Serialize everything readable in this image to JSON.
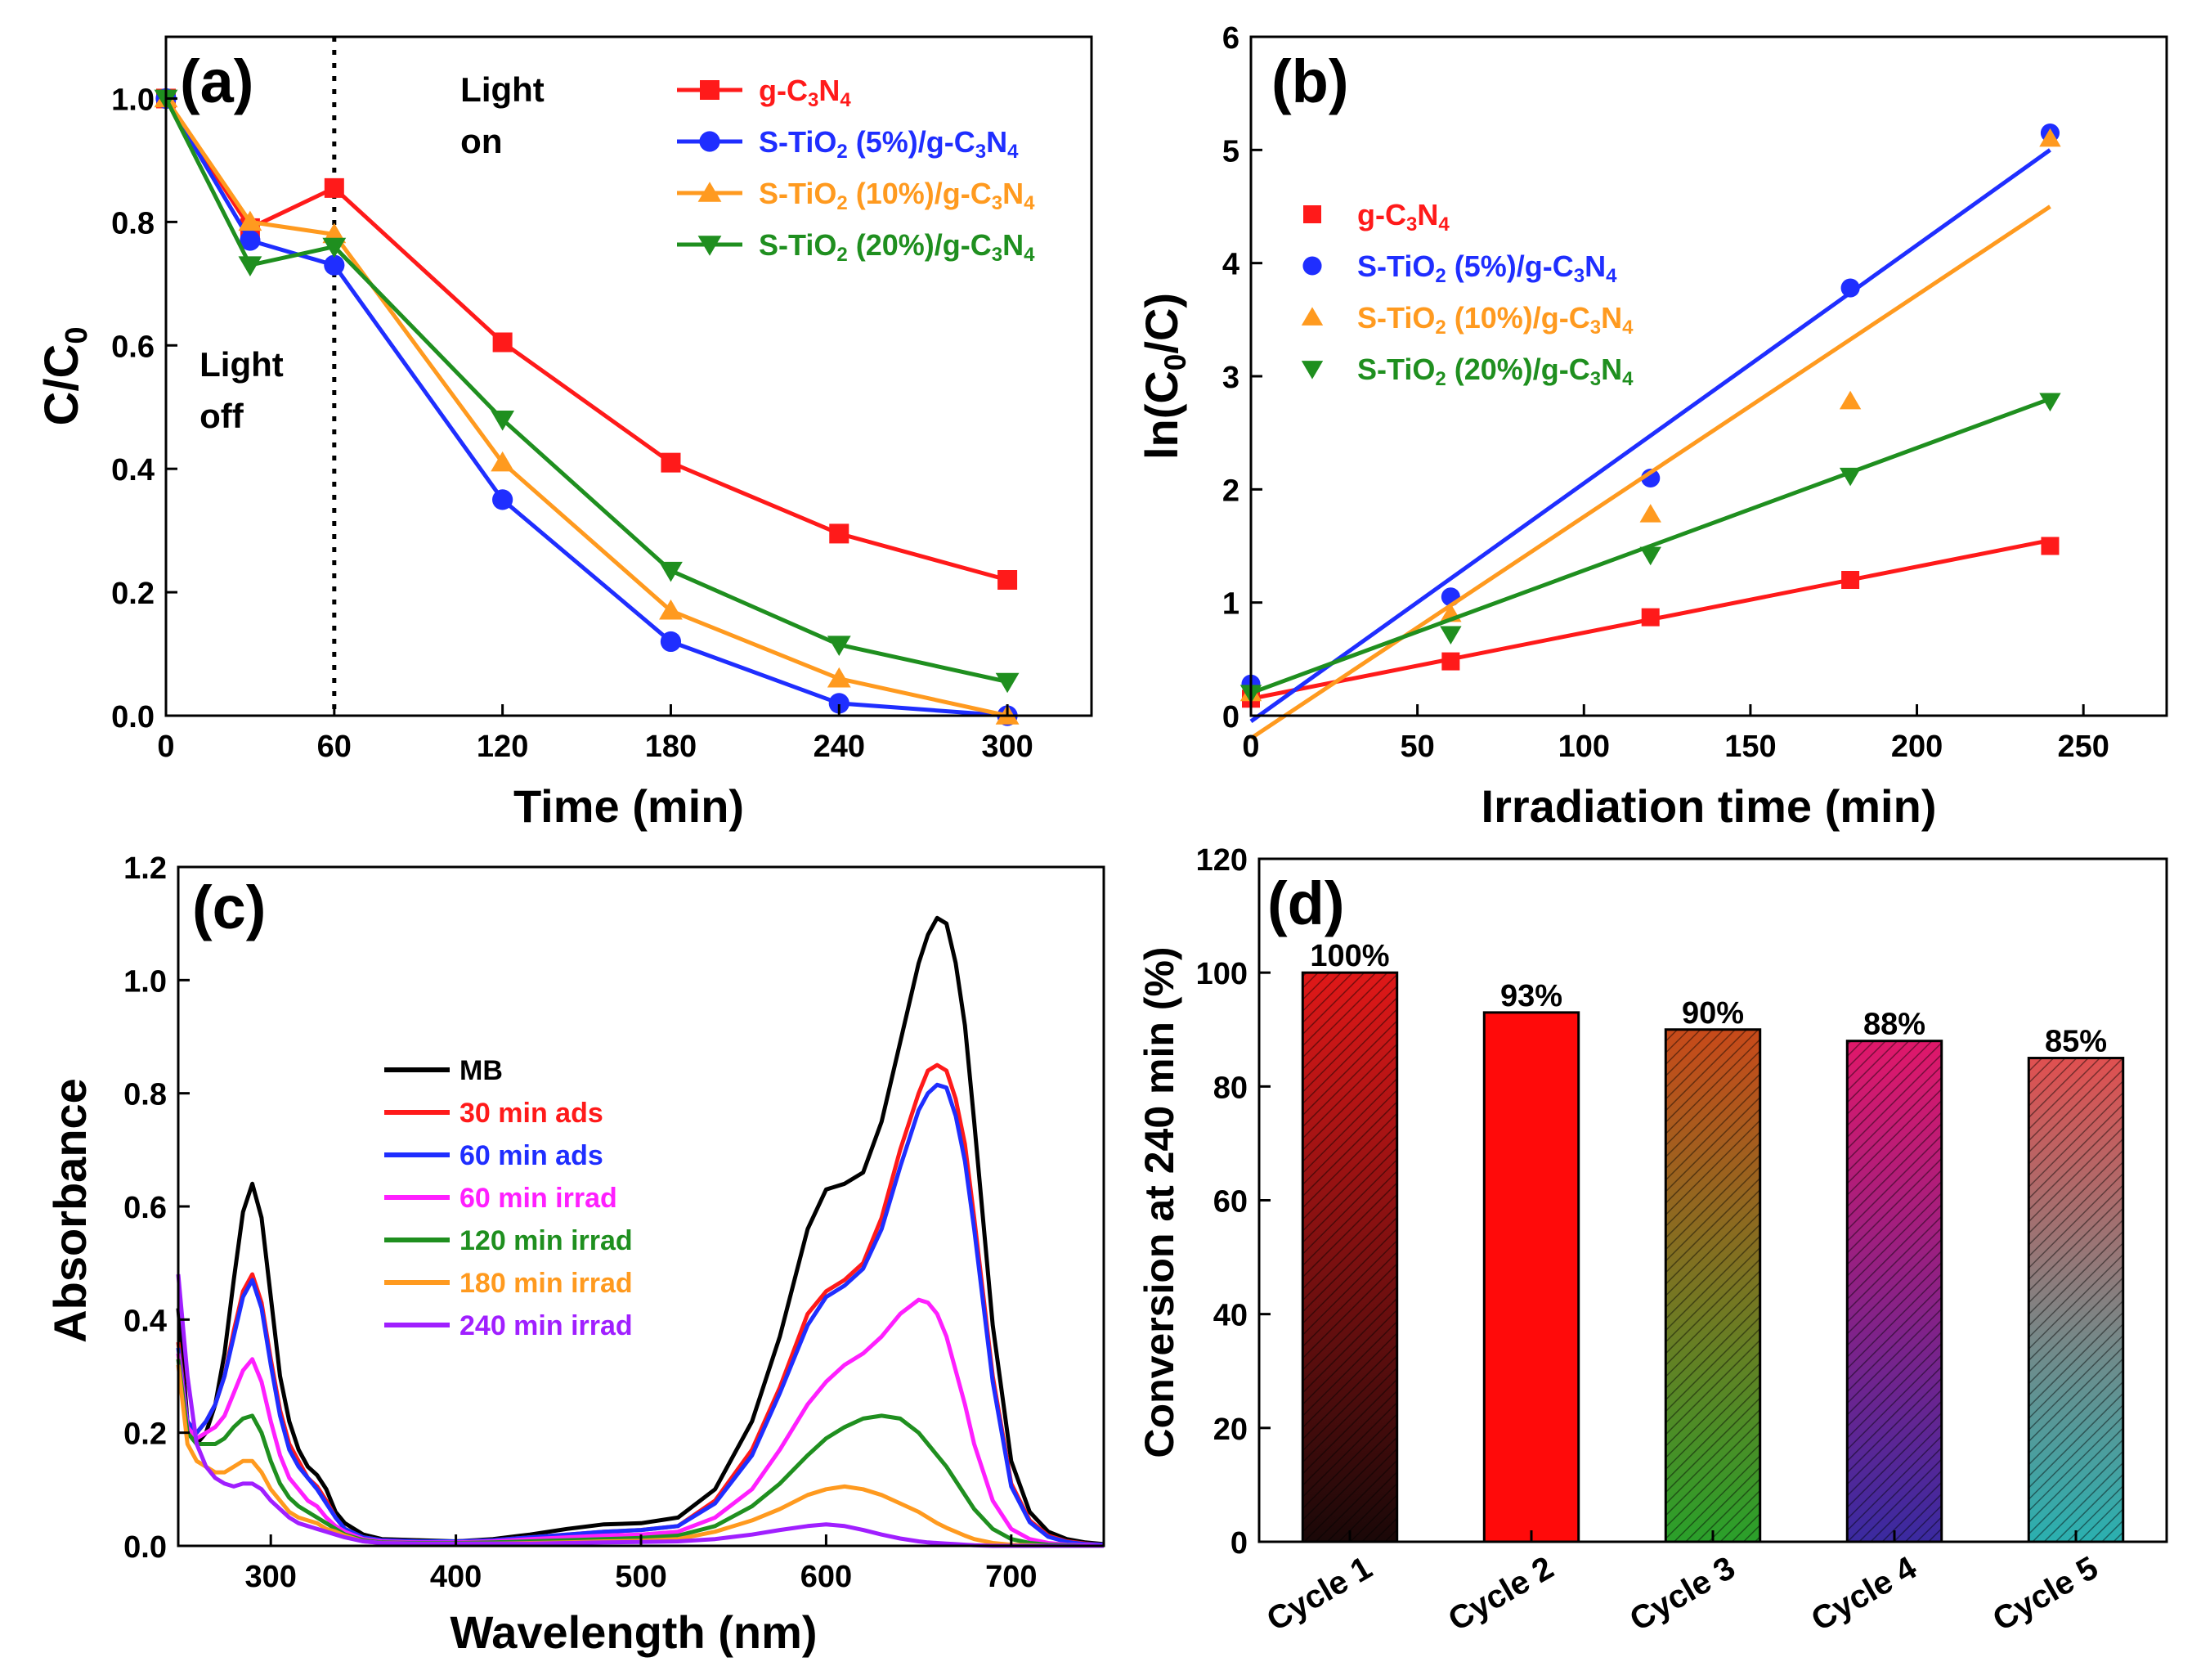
{
  "chart_data": [
    {
      "panel": "a",
      "type": "line",
      "panel_label": "(a)",
      "xlabel": "Time (min)",
      "ylabel": "C/C",
      "ylabel_sub": "0",
      "xlim": [
        0,
        330
      ],
      "ylim": [
        0,
        1.1
      ],
      "xticks": [
        0,
        60,
        120,
        180,
        240,
        300
      ],
      "yticks": [
        0.0,
        0.2,
        0.4,
        0.6,
        0.8,
        1.0
      ],
      "ytick_labels": [
        "0.0",
        "0.2",
        "0.4",
        "0.6",
        "0.8",
        "1.0"
      ],
      "x": [
        0,
        30,
        60,
        120,
        180,
        240,
        300
      ],
      "divider_x": 60,
      "annotations": [
        {
          "lines": [
            "Light",
            "on"
          ],
          "x": 105,
          "y": 0.995
        },
        {
          "lines": [
            "Light",
            "off"
          ],
          "x": 12,
          "y": 0.55
        }
      ],
      "legend_position": "top-right",
      "series": [
        {
          "name": "g-C3N4",
          "label_parts": [
            [
              "g-C",
              ""
            ],
            [
              "3",
              "sub"
            ],
            [
              "N",
              ""
            ],
            [
              "4",
              "sub"
            ]
          ],
          "color": "#ff1a1a",
          "marker": "square",
          "values": [
            1.0,
            0.79,
            0.855,
            0.605,
            0.41,
            0.295,
            0.22
          ]
        },
        {
          "name": "S-TiO2 (5%)/g-C3N4",
          "label_parts": [
            [
              "S-TiO",
              ""
            ],
            [
              "2",
              "sub"
            ],
            [
              " (5%)/g-C",
              ""
            ],
            [
              "3",
              "sub"
            ],
            [
              "N",
              ""
            ],
            [
              "4",
              "sub"
            ]
          ],
          "color": "#1f2eff",
          "marker": "circle",
          "values": [
            1.0,
            0.77,
            0.73,
            0.35,
            0.12,
            0.02,
            0.0
          ]
        },
        {
          "name": "S-TiO2 (10%)/g-C3N4",
          "label_parts": [
            [
              "S-TiO",
              ""
            ],
            [
              "2",
              "sub"
            ],
            [
              " (10%)/g-C",
              ""
            ],
            [
              "3",
              "sub"
            ],
            [
              "N",
              ""
            ],
            [
              "4",
              "sub"
            ]
          ],
          "color": "#ff9a1f",
          "marker": "triangle-up",
          "values": [
            1.0,
            0.8,
            0.78,
            0.41,
            0.17,
            0.06,
            0.0
          ]
        },
        {
          "name": "S-TiO2 (20%)/g-C3N4",
          "label_parts": [
            [
              "S-TiO",
              ""
            ],
            [
              "2",
              "sub"
            ],
            [
              " (20%)/g-C",
              ""
            ],
            [
              "3",
              "sub"
            ],
            [
              "N",
              ""
            ],
            [
              "4",
              "sub"
            ]
          ],
          "color": "#1f8f1f",
          "marker": "triangle-down",
          "values": [
            1.0,
            0.73,
            0.76,
            0.48,
            0.235,
            0.115,
            0.055
          ]
        }
      ]
    },
    {
      "panel": "b",
      "type": "scatter",
      "panel_label": "(b)",
      "xlabel": "Irradiation time (min)",
      "ylabel": "ln(C",
      "ylabel_sub": "0",
      "ylabel_end": "/C)",
      "xlim": [
        0,
        275
      ],
      "ylim": [
        0,
        6
      ],
      "xticks": [
        0,
        50,
        100,
        150,
        200,
        250
      ],
      "yticks": [
        0,
        1,
        2,
        3,
        4,
        5,
        6
      ],
      "x": [
        0,
        60,
        120,
        180,
        240
      ],
      "legend_position": "upper-left",
      "series": [
        {
          "name": "g-C3N4",
          "label_parts": [
            [
              "g-C",
              ""
            ],
            [
              "3",
              "sub"
            ],
            [
              "N",
              ""
            ],
            [
              "4",
              "sub"
            ]
          ],
          "color": "#ff1a1a",
          "marker": "square",
          "values": [
            0.15,
            0.48,
            0.87,
            1.2,
            1.5
          ],
          "fit": [
            0.15,
            1.55
          ]
        },
        {
          "name": "S-TiO2 (5%)/g-C3N4",
          "label_parts": [
            [
              "S-TiO",
              ""
            ],
            [
              "2",
              "sub"
            ],
            [
              " (5%)/g-C",
              ""
            ],
            [
              "3",
              "sub"
            ],
            [
              "N",
              ""
            ],
            [
              "4",
              "sub"
            ]
          ],
          "color": "#1f2eff",
          "marker": "circle",
          "values": [
            0.28,
            1.05,
            2.1,
            3.78,
            5.15
          ],
          "fit": [
            -0.05,
            5.0
          ]
        },
        {
          "name": "S-TiO2 (10%)/g-C3N4",
          "label_parts": [
            [
              "S-TiO",
              ""
            ],
            [
              "2",
              "sub"
            ],
            [
              " (10%)/g-C",
              ""
            ],
            [
              "3",
              "sub"
            ],
            [
              "N",
              ""
            ],
            [
              "4",
              "sub"
            ]
          ],
          "color": "#ff9a1f",
          "marker": "triangle-up",
          "values": [
            0.2,
            0.9,
            1.78,
            2.78,
            5.1
          ],
          "fit": [
            -0.2,
            4.5
          ]
        },
        {
          "name": "S-TiO2 (20%)/g-C3N4",
          "label_parts": [
            [
              "S-TiO",
              ""
            ],
            [
              "2",
              "sub"
            ],
            [
              " (20%)/g-C",
              ""
            ],
            [
              "3",
              "sub"
            ],
            [
              "N",
              ""
            ],
            [
              "4",
              "sub"
            ]
          ],
          "color": "#1f8f1f",
          "marker": "triangle-down",
          "values": [
            0.2,
            0.72,
            1.42,
            2.12,
            2.78
          ],
          "fit": [
            0.2,
            2.8
          ]
        }
      ]
    },
    {
      "panel": "c",
      "type": "line",
      "panel_label": "(c)",
      "xlabel": "Wavelength (nm)",
      "ylabel": "Absorbance",
      "xlim": [
        250,
        750
      ],
      "ylim": [
        0,
        1.2
      ],
      "xticks": [
        300,
        400,
        500,
        600,
        700
      ],
      "yticks": [
        0.0,
        0.2,
        0.4,
        0.6,
        0.8,
        1.0,
        1.2
      ],
      "ytick_labels": [
        "0.0",
        "0.2",
        "0.4",
        "0.6",
        "0.8",
        "1.0",
        "1.2"
      ],
      "x": [
        250,
        255,
        260,
        265,
        270,
        275,
        280,
        285,
        290,
        295,
        300,
        305,
        310,
        315,
        320,
        325,
        330,
        335,
        340,
        350,
        360,
        380,
        400,
        420,
        440,
        460,
        480,
        500,
        520,
        540,
        560,
        575,
        590,
        600,
        610,
        620,
        630,
        640,
        650,
        655,
        660,
        665,
        670,
        675,
        680,
        690,
        700,
        710,
        720,
        730,
        740,
        750
      ],
      "legend_position": "middle-left",
      "series": [
        {
          "name": "MB",
          "color": "#000000",
          "values": [
            0.42,
            0.22,
            0.18,
            0.2,
            0.25,
            0.34,
            0.47,
            0.59,
            0.64,
            0.58,
            0.44,
            0.3,
            0.22,
            0.17,
            0.14,
            0.125,
            0.1,
            0.06,
            0.04,
            0.02,
            0.012,
            0.01,
            0.008,
            0.012,
            0.02,
            0.03,
            0.038,
            0.04,
            0.05,
            0.1,
            0.22,
            0.37,
            0.56,
            0.63,
            0.64,
            0.66,
            0.75,
            0.89,
            1.03,
            1.08,
            1.11,
            1.1,
            1.03,
            0.92,
            0.75,
            0.39,
            0.15,
            0.06,
            0.025,
            0.012,
            0.006,
            0.003
          ]
        },
        {
          "name": "30 min ads",
          "color": "#ff1a1a",
          "values": [
            0.36,
            0.22,
            0.2,
            0.22,
            0.25,
            0.3,
            0.38,
            0.45,
            0.48,
            0.43,
            0.33,
            0.24,
            0.18,
            0.15,
            0.12,
            0.105,
            0.08,
            0.05,
            0.03,
            0.015,
            0.01,
            0.008,
            0.008,
            0.01,
            0.015,
            0.02,
            0.025,
            0.028,
            0.035,
            0.08,
            0.17,
            0.28,
            0.41,
            0.45,
            0.47,
            0.5,
            0.58,
            0.7,
            0.8,
            0.84,
            0.85,
            0.84,
            0.79,
            0.71,
            0.58,
            0.3,
            0.11,
            0.045,
            0.018,
            0.008,
            0.004,
            0.002
          ]
        },
        {
          "name": "60 min ads",
          "color": "#1f2eff",
          "values": [
            0.35,
            0.22,
            0.2,
            0.22,
            0.25,
            0.3,
            0.37,
            0.44,
            0.47,
            0.42,
            0.32,
            0.23,
            0.17,
            0.14,
            0.12,
            0.1,
            0.075,
            0.05,
            0.03,
            0.015,
            0.01,
            0.008,
            0.008,
            0.01,
            0.015,
            0.02,
            0.025,
            0.028,
            0.035,
            0.075,
            0.16,
            0.27,
            0.39,
            0.44,
            0.46,
            0.49,
            0.56,
            0.67,
            0.77,
            0.8,
            0.815,
            0.81,
            0.76,
            0.68,
            0.56,
            0.29,
            0.105,
            0.042,
            0.016,
            0.007,
            0.003,
            0.002
          ]
        },
        {
          "name": "60 min irrad",
          "color": "#ff1fff",
          "values": [
            0.34,
            0.21,
            0.19,
            0.2,
            0.21,
            0.23,
            0.27,
            0.31,
            0.33,
            0.29,
            0.22,
            0.16,
            0.12,
            0.1,
            0.08,
            0.07,
            0.05,
            0.035,
            0.025,
            0.012,
            0.008,
            0.006,
            0.006,
            0.008,
            0.012,
            0.015,
            0.018,
            0.02,
            0.025,
            0.05,
            0.1,
            0.17,
            0.25,
            0.29,
            0.32,
            0.34,
            0.37,
            0.41,
            0.435,
            0.43,
            0.41,
            0.37,
            0.31,
            0.25,
            0.18,
            0.08,
            0.03,
            0.012,
            0.005,
            0.002,
            0.001,
            0.0
          ]
        },
        {
          "name": "120 min irrad",
          "color": "#1f8f1f",
          "values": [
            0.33,
            0.2,
            0.18,
            0.18,
            0.18,
            0.19,
            0.21,
            0.225,
            0.23,
            0.2,
            0.15,
            0.11,
            0.085,
            0.07,
            0.06,
            0.05,
            0.04,
            0.03,
            0.02,
            0.01,
            0.006,
            0.005,
            0.005,
            0.006,
            0.008,
            0.01,
            0.012,
            0.014,
            0.018,
            0.035,
            0.07,
            0.11,
            0.16,
            0.19,
            0.21,
            0.225,
            0.23,
            0.225,
            0.2,
            0.18,
            0.16,
            0.14,
            0.115,
            0.09,
            0.065,
            0.03,
            0.012,
            0.005,
            0.002,
            0.001,
            0.0,
            0.0
          ]
        },
        {
          "name": "180 min irrad",
          "color": "#ff9a1f",
          "values": [
            0.32,
            0.18,
            0.15,
            0.14,
            0.13,
            0.13,
            0.14,
            0.15,
            0.15,
            0.13,
            0.1,
            0.08,
            0.06,
            0.05,
            0.045,
            0.04,
            0.03,
            0.025,
            0.018,
            0.008,
            0.005,
            0.004,
            0.004,
            0.004,
            0.005,
            0.006,
            0.008,
            0.009,
            0.012,
            0.025,
            0.045,
            0.065,
            0.09,
            0.1,
            0.105,
            0.1,
            0.09,
            0.075,
            0.06,
            0.05,
            0.04,
            0.032,
            0.025,
            0.018,
            0.012,
            0.005,
            0.002,
            0.001,
            0.0,
            0.0,
            0.0,
            0.0
          ]
        },
        {
          "name": "240 min irrad",
          "color": "#a01fff",
          "values": [
            0.48,
            0.3,
            0.18,
            0.14,
            0.12,
            0.11,
            0.105,
            0.11,
            0.11,
            0.1,
            0.08,
            0.065,
            0.05,
            0.04,
            0.035,
            0.03,
            0.025,
            0.02,
            0.015,
            0.008,
            0.005,
            0.004,
            0.004,
            0.004,
            0.004,
            0.005,
            0.006,
            0.007,
            0.008,
            0.012,
            0.02,
            0.028,
            0.035,
            0.038,
            0.035,
            0.028,
            0.02,
            0.013,
            0.008,
            0.006,
            0.005,
            0.004,
            0.003,
            0.002,
            0.001,
            0.0,
            0.0,
            0.0,
            0.0,
            0.0,
            0.0,
            0.0
          ]
        }
      ]
    },
    {
      "panel": "d",
      "type": "bar",
      "panel_label": "(d)",
      "xlabel": "",
      "ylabel": "Conversion at 240 min (%)",
      "ylim": [
        0,
        120
      ],
      "yticks": [
        0,
        20,
        40,
        60,
        80,
        100,
        120
      ],
      "categories": [
        "Cycle 1",
        "Cycle 2",
        "Cycle 3",
        "Cycle 4",
        "Cycle 5"
      ],
      "values": [
        100,
        93,
        90,
        88,
        85
      ],
      "data_labels": [
        "100%",
        "93%",
        "90%",
        "88%",
        "85%"
      ],
      "bar_colors": [
        {
          "top": "#e01818",
          "bottom": "#1a0808",
          "hatch": true
        },
        {
          "top": "#ff0a0a",
          "bottom": "#ff0a0a",
          "hatch": false
        },
        {
          "top": "#c84a1a",
          "bottom": "#2aa02a",
          "hatch": true
        },
        {
          "top": "#e0186a",
          "bottom": "#3a2aa0",
          "hatch": true
        },
        {
          "top": "#e05050",
          "bottom": "#2ab0b0",
          "hatch": true
        }
      ]
    }
  ]
}
